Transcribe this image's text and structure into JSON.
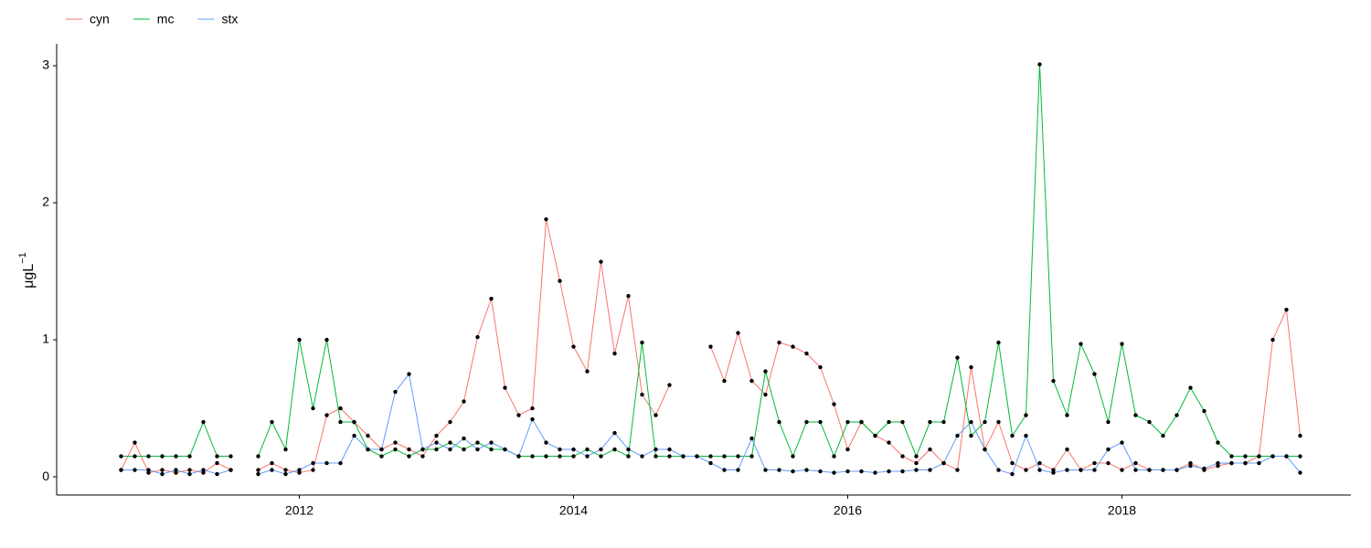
{
  "chart_data": {
    "type": "line",
    "y_label": "μgL",
    "y_label_superscript": "−1",
    "legend_position": "top-left",
    "x": [
      2010.7,
      2010.8,
      2010.9,
      2011.0,
      2011.1,
      2011.2,
      2011.3,
      2011.4,
      2011.5,
      2011.6,
      2011.7,
      2011.8,
      2011.9,
      2012.0,
      2012.1,
      2012.2,
      2012.3,
      2012.4,
      2012.5,
      2012.6,
      2012.7,
      2012.8,
      2012.9,
      2013.0,
      2013.1,
      2013.2,
      2013.3,
      2013.4,
      2013.5,
      2013.6,
      2013.7,
      2013.8,
      2013.9,
      2014.0,
      2014.1,
      2014.2,
      2014.3,
      2014.4,
      2014.5,
      2014.6,
      2014.7,
      2014.8,
      2014.9,
      2015.0,
      2015.1,
      2015.2,
      2015.3,
      2015.4,
      2015.5,
      2015.6,
      2015.7,
      2015.8,
      2015.9,
      2016.0,
      2016.1,
      2016.2,
      2016.3,
      2016.4,
      2016.5,
      2016.6,
      2016.7,
      2016.8,
      2016.9,
      2017.0,
      2017.1,
      2017.2,
      2017.3,
      2017.4,
      2017.5,
      2017.6,
      2017.7,
      2017.8,
      2017.9,
      2018.0,
      2018.1,
      2018.2,
      2018.3,
      2018.4,
      2018.5,
      2018.6,
      2018.7,
      2018.8,
      2018.9,
      2019.0,
      2019.1,
      2019.2,
      2019.3
    ],
    "series": [
      {
        "name": "cyn",
        "color": "#F8766D",
        "values": [
          0.05,
          0.25,
          0.03,
          0.05,
          0.03,
          0.05,
          0.03,
          0.1,
          0.05,
          null,
          0.05,
          0.1,
          0.05,
          0.03,
          0.05,
          0.45,
          0.5,
          0.4,
          0.3,
          0.2,
          0.25,
          0.2,
          0.15,
          0.3,
          0.4,
          0.55,
          1.02,
          1.3,
          0.65,
          0.45,
          0.5,
          1.88,
          1.43,
          0.95,
          0.77,
          1.57,
          0.9,
          1.32,
          0.6,
          0.45,
          0.67,
          null,
          null,
          0.95,
          0.7,
          1.05,
          0.7,
          0.6,
          0.98,
          0.95,
          0.9,
          0.8,
          0.53,
          0.2,
          0.4,
          0.3,
          0.25,
          0.15,
          0.1,
          0.2,
          0.1,
          0.05,
          0.8,
          0.2,
          0.4,
          0.1,
          0.05,
          0.1,
          0.05,
          0.2,
          0.05,
          0.1,
          0.1,
          0.05,
          0.1,
          0.05,
          0.05,
          0.05,
          0.1,
          0.05,
          0.08,
          0.1,
          0.1,
          0.15,
          1.0,
          1.22,
          0.3
        ]
      },
      {
        "name": "mc",
        "color": "#00BA38",
        "values": [
          0.15,
          0.15,
          0.15,
          0.15,
          0.15,
          0.15,
          0.4,
          0.15,
          0.15,
          null,
          0.15,
          0.4,
          0.2,
          1.0,
          0.5,
          1.0,
          0.4,
          0.4,
          0.2,
          0.15,
          0.2,
          0.15,
          0.2,
          0.2,
          0.25,
          0.2,
          0.25,
          0.2,
          0.2,
          0.15,
          0.15,
          0.15,
          0.15,
          0.15,
          0.2,
          0.15,
          0.2,
          0.15,
          0.98,
          0.15,
          0.15,
          0.15,
          0.15,
          0.15,
          0.15,
          0.15,
          0.15,
          0.77,
          0.4,
          0.15,
          0.4,
          0.4,
          0.15,
          0.4,
          0.4,
          0.3,
          0.4,
          0.4,
          0.15,
          0.4,
          0.4,
          0.87,
          0.3,
          0.4,
          0.98,
          0.3,
          0.45,
          3.01,
          0.7,
          0.45,
          0.97,
          0.75,
          0.4,
          0.97,
          0.45,
          0.4,
          0.3,
          0.45,
          0.65,
          0.48,
          0.25,
          0.15,
          0.15,
          0.15,
          0.15,
          0.15,
          0.15
        ]
      },
      {
        "name": "stx",
        "color": "#619CFF",
        "values": [
          0.05,
          0.05,
          0.05,
          0.02,
          0.05,
          0.02,
          0.05,
          0.02,
          0.05,
          null,
          0.02,
          0.05,
          0.02,
          0.05,
          0.1,
          0.1,
          0.1,
          0.3,
          0.2,
          0.2,
          0.62,
          0.75,
          0.2,
          0.25,
          0.2,
          0.28,
          0.2,
          0.25,
          0.2,
          0.15,
          0.42,
          0.25,
          0.2,
          0.2,
          0.15,
          0.2,
          0.32,
          0.2,
          0.15,
          0.2,
          0.2,
          0.15,
          0.15,
          0.1,
          0.05,
          0.05,
          0.28,
          0.05,
          0.05,
          0.04,
          0.05,
          0.04,
          0.03,
          0.04,
          0.04,
          0.03,
          0.04,
          0.04,
          0.05,
          0.05,
          0.1,
          0.3,
          0.4,
          0.2,
          0.05,
          0.02,
          0.3,
          0.05,
          0.03,
          0.05,
          0.05,
          0.05,
          0.2,
          0.25,
          0.05,
          0.05,
          0.05,
          0.05,
          0.08,
          0.06,
          0.1,
          0.1,
          0.1,
          0.1,
          0.15,
          0.15,
          0.03
        ]
      }
    ],
    "xlim": [
      2010.23,
      2019.67
    ],
    "ylim": [
      -0.133,
      3.16
    ],
    "xticks": [
      2012,
      2014,
      2016,
      2018
    ],
    "yticks": [
      0,
      1,
      2,
      3
    ],
    "grid": false,
    "marker_color": "#000000"
  }
}
